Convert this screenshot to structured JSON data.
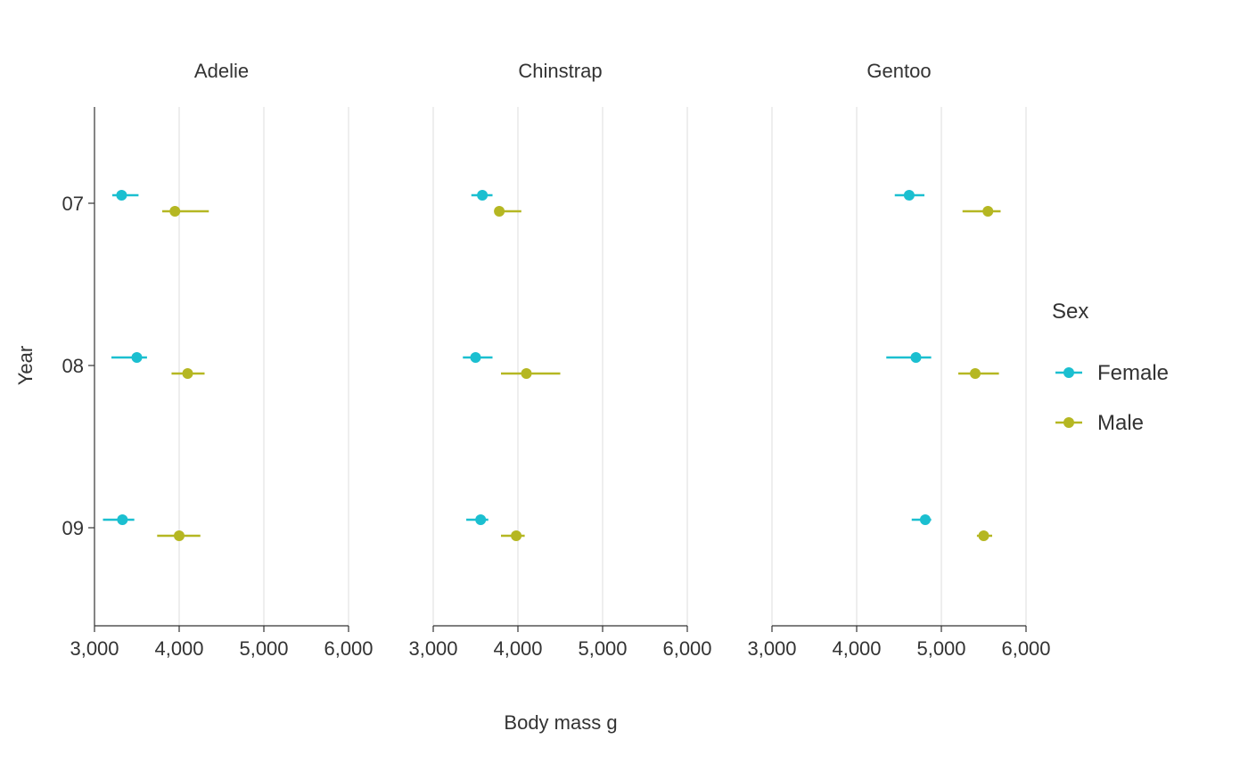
{
  "chart_data": {
    "type": "scatter",
    "subtype": "point-range faceted",
    "xlabel": "Body mass g",
    "ylabel": "Year",
    "xlim": [
      3000,
      6000
    ],
    "x_ticks": [
      3000,
      4000,
      5000,
      6000
    ],
    "x_tick_labels": [
      "3,000",
      "4,000",
      "5,000",
      "6,000"
    ],
    "y_categories": [
      "07",
      "08",
      "09"
    ],
    "grid": "vertical major lines only",
    "legend": {
      "title": "Sex",
      "position": "right",
      "entries": [
        {
          "name": "Female",
          "color": "#1BBFD0"
        },
        {
          "name": "Male",
          "color": "#B5B722"
        }
      ]
    },
    "facets": [
      {
        "title": "Adelie",
        "points": [
          {
            "year": "07",
            "sex": "Female",
            "mean": 3320,
            "low": 3210,
            "high": 3520
          },
          {
            "year": "07",
            "sex": "Male",
            "mean": 3950,
            "low": 3800,
            "high": 4350
          },
          {
            "year": "08",
            "sex": "Female",
            "mean": 3500,
            "low": 3200,
            "high": 3620
          },
          {
            "year": "08",
            "sex": "Male",
            "mean": 4100,
            "low": 3910,
            "high": 4300
          },
          {
            "year": "09",
            "sex": "Female",
            "mean": 3330,
            "low": 3100,
            "high": 3470
          },
          {
            "year": "09",
            "sex": "Male",
            "mean": 4000,
            "low": 3740,
            "high": 4250
          }
        ]
      },
      {
        "title": "Chinstrap",
        "points": [
          {
            "year": "07",
            "sex": "Female",
            "mean": 3580,
            "low": 3450,
            "high": 3700
          },
          {
            "year": "07",
            "sex": "Male",
            "mean": 3780,
            "low": 3740,
            "high": 4040
          },
          {
            "year": "08",
            "sex": "Female",
            "mean": 3500,
            "low": 3350,
            "high": 3700
          },
          {
            "year": "08",
            "sex": "Male",
            "mean": 4100,
            "low": 3800,
            "high": 4500
          },
          {
            "year": "09",
            "sex": "Female",
            "mean": 3560,
            "low": 3390,
            "high": 3650
          },
          {
            "year": "09",
            "sex": "Male",
            "mean": 3980,
            "low": 3800,
            "high": 4080
          }
        ]
      },
      {
        "title": "Gentoo",
        "points": [
          {
            "year": "07",
            "sex": "Female",
            "mean": 4620,
            "low": 4450,
            "high": 4800
          },
          {
            "year": "07",
            "sex": "Male",
            "mean": 5550,
            "low": 5250,
            "high": 5700
          },
          {
            "year": "08",
            "sex": "Female",
            "mean": 4700,
            "low": 4350,
            "high": 4880
          },
          {
            "year": "08",
            "sex": "Male",
            "mean": 5400,
            "low": 5200,
            "high": 5680
          },
          {
            "year": "09",
            "sex": "Female",
            "mean": 4810,
            "low": 4650,
            "high": 4880
          },
          {
            "year": "09",
            "sex": "Male",
            "mean": 5500,
            "low": 5420,
            "high": 5600
          }
        ]
      }
    ]
  }
}
